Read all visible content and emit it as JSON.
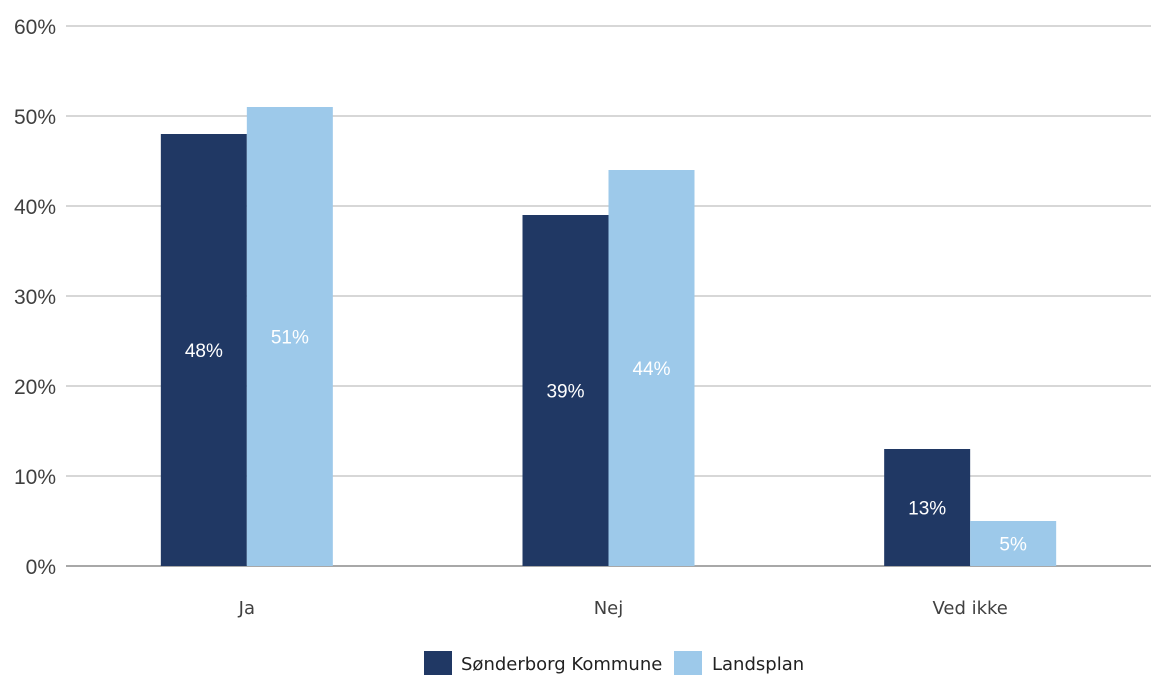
{
  "chart_data": {
    "type": "bar",
    "categories": [
      "Ja",
      "Nej",
      "Ved ikke"
    ],
    "series": [
      {
        "name": "Sønderborg Kommune",
        "color": "#203864",
        "values": [
          48,
          39,
          13
        ],
        "labels": [
          "48%",
          "39%",
          "13%"
        ]
      },
      {
        "name": "Landsplan",
        "color": "#9DC9EA",
        "values": [
          51,
          44,
          5
        ],
        "labels": [
          "51%",
          "44%",
          "5%"
        ]
      }
    ],
    "ylim": [
      0,
      60
    ],
    "yticks": [
      0,
      10,
      20,
      30,
      40,
      50,
      60
    ],
    "ytick_labels": [
      "0%",
      "10%",
      "20%",
      "30%",
      "40%",
      "50%",
      "60%"
    ],
    "grid": true,
    "legend_position": "bottom"
  }
}
